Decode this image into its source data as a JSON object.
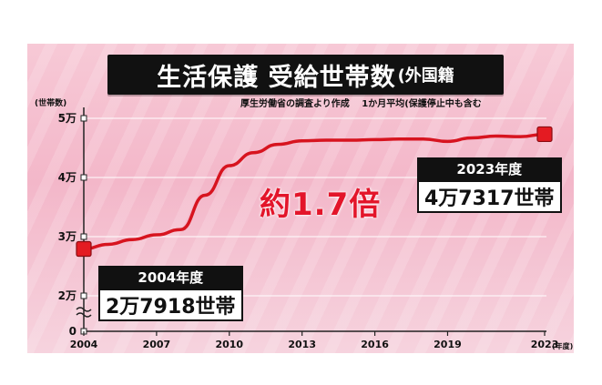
{
  "title": "生活保護 受給世帯数",
  "title_suffix": "(外国籍",
  "source_note": "厚生労働省の調査より作成　 1か月平均(保護停止中も含む",
  "y_unit_label": "(世帯数)",
  "x_unit_label": "(年度)",
  "multiplier_label": "約1.7倍",
  "callout_start": {
    "label": "2004年度",
    "value": "2万7918世帯"
  },
  "callout_end": {
    "label": "2023年度",
    "value": "4万7317世帯"
  },
  "colors": {
    "line": "#d7141f",
    "marker": "#e41b22",
    "title_bg": "#111111",
    "accent_text": "#e3152a"
  },
  "chart_data": {
    "type": "line",
    "x_ticks": [
      "2004",
      "2007",
      "2010",
      "2013",
      "2016",
      "2019",
      "2023"
    ],
    "y_ticks": [
      "0",
      "2万",
      "3万",
      "4万",
      "5万"
    ],
    "ylim": [
      20000,
      50000
    ],
    "axis_break": true,
    "grid": true,
    "series": [
      {
        "x": [
          2004,
          2005,
          2006,
          2007,
          2008,
          2009,
          2010,
          2011,
          2012,
          2013,
          2014,
          2015,
          2016,
          2017,
          2018,
          2019,
          2020,
          2021,
          2022,
          2023
        ],
        "values": [
          27918,
          28700,
          29500,
          30300,
          31200,
          37000,
          42000,
          44200,
          45600,
          46200,
          46300,
          46300,
          46400,
          46500,
          46500,
          46100,
          46700,
          47000,
          46900,
          47317
        ]
      }
    ]
  }
}
